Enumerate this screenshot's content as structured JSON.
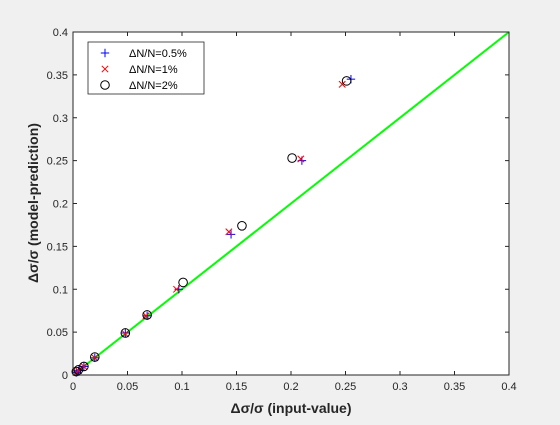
{
  "chart_data": {
    "type": "scatter",
    "title": "",
    "xlabel": "Δσ/σ (input-value)",
    "ylabel": "Δσ/σ (model-prediction)",
    "xlim": [
      0,
      0.4
    ],
    "ylim": [
      0,
      0.4
    ],
    "xticks": [
      0,
      0.05,
      0.1,
      0.15,
      0.2,
      0.25,
      0.3,
      0.35,
      0.4
    ],
    "xtick_labels": [
      "0",
      "0.05",
      "0.1",
      "0.15",
      "0.2",
      "0.25",
      "0.3",
      "0.35",
      "0.4"
    ],
    "yticks": [
      0,
      0.05,
      0.1,
      0.15,
      0.2,
      0.25,
      0.3,
      0.35,
      0.4
    ],
    "ytick_labels": [
      "0",
      "0.05",
      "0.1",
      "0.15",
      "0.2",
      "0.25",
      "0.3",
      "0.35",
      "0.4"
    ],
    "grid": false,
    "legend_position": "top-left",
    "reference_line": {
      "x": [
        0,
        0.4
      ],
      "y": [
        0,
        0.4
      ],
      "color": "#00ff00"
    },
    "series": [
      {
        "name": "ΔN/N=0.5%",
        "marker": "plus",
        "color": "#0000ff",
        "x": [
          0.003,
          0.005,
          0.01,
          0.02,
          0.048,
          0.068,
          0.097,
          0.145,
          0.21,
          0.255
        ],
        "y": [
          0.003,
          0.005,
          0.01,
          0.02,
          0.049,
          0.069,
          0.1,
          0.164,
          0.25,
          0.345
        ]
      },
      {
        "name": "ΔN/N=1%",
        "marker": "x",
        "color": "#ff0000",
        "x": [
          0.003,
          0.005,
          0.01,
          0.02,
          0.048,
          0.067,
          0.095,
          0.143,
          0.209,
          0.247
        ],
        "y": [
          0.003,
          0.005,
          0.01,
          0.02,
          0.048,
          0.069,
          0.1,
          0.167,
          0.252,
          0.339
        ]
      },
      {
        "name": "ΔN/N=2%",
        "marker": "circle",
        "color": "#000000",
        "x": [
          0.003,
          0.005,
          0.01,
          0.02,
          0.048,
          0.068,
          0.101,
          0.155,
          0.201,
          0.251
        ],
        "y": [
          0.004,
          0.006,
          0.01,
          0.021,
          0.049,
          0.07,
          0.108,
          0.174,
          0.253,
          0.343
        ]
      }
    ]
  }
}
